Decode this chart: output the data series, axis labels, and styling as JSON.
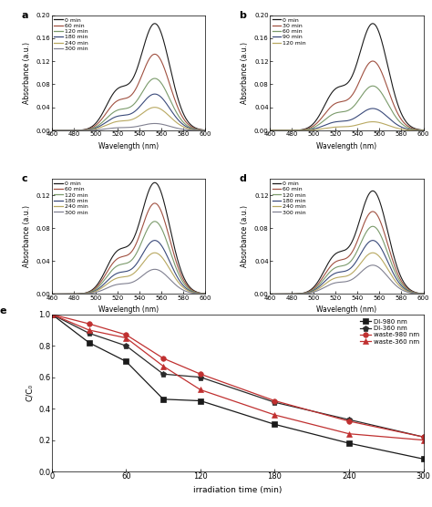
{
  "panel_a": {
    "label": "a",
    "times": [
      0,
      60,
      120,
      180,
      240,
      300
    ],
    "colors": [
      "#1a1a1a",
      "#a05040",
      "#7a9a6a",
      "#3a4a7a",
      "#b8a860",
      "#808090"
    ],
    "peak_abs": [
      0.185,
      0.132,
      0.09,
      0.063,
      0.04,
      0.012
    ],
    "ylim": [
      0.0,
      0.2
    ],
    "yticks": [
      0.0,
      0.04,
      0.08,
      0.12,
      0.16,
      0.2
    ],
    "ytick_labels": [
      "0.00",
      "0.04",
      "0.08",
      "0.12",
      "0.16",
      "0.20"
    ],
    "legend_times": [
      "0 min",
      "60 min",
      "120 min",
      "180 min",
      "240 min",
      "300 min"
    ]
  },
  "panel_b": {
    "label": "b",
    "times": [
      0,
      30,
      60,
      90,
      120
    ],
    "colors": [
      "#1a1a1a",
      "#a05040",
      "#7a9a6a",
      "#3a4a7a",
      "#b8a860"
    ],
    "peak_abs": [
      0.185,
      0.12,
      0.077,
      0.038,
      0.015
    ],
    "ylim": [
      0.0,
      0.2
    ],
    "yticks": [
      0.0,
      0.04,
      0.08,
      0.12,
      0.16,
      0.2
    ],
    "ytick_labels": [
      "0.00",
      "0.04",
      "0.08",
      "0.12",
      "0.16",
      "0.20"
    ],
    "legend_times": [
      "0 min",
      "30 min",
      "60 min",
      "90 min",
      "120 min"
    ]
  },
  "panel_c": {
    "label": "c",
    "times": [
      0,
      60,
      120,
      180,
      240,
      300
    ],
    "colors": [
      "#1a1a1a",
      "#a05040",
      "#7a9a6a",
      "#3a4a7a",
      "#b8a860",
      "#808090"
    ],
    "peak_abs": [
      0.135,
      0.11,
      0.088,
      0.065,
      0.05,
      0.03
    ],
    "ylim": [
      0.0,
      0.14
    ],
    "yticks": [
      0.0,
      0.04,
      0.08,
      0.12
    ],
    "ytick_labels": [
      "0.00",
      "0.04",
      "0.08",
      "0.12"
    ],
    "legend_times": [
      "0 min",
      "60 min",
      "120 min",
      "180 min",
      "240 min",
      "300 min"
    ]
  },
  "panel_d": {
    "label": "d",
    "times": [
      0,
      60,
      120,
      180,
      240,
      300
    ],
    "colors": [
      "#1a1a1a",
      "#a05040",
      "#7a9a6a",
      "#3a4a7a",
      "#b8a860",
      "#808090"
    ],
    "peak_abs": [
      0.125,
      0.1,
      0.082,
      0.065,
      0.05,
      0.035
    ],
    "ylim": [
      0.0,
      0.14
    ],
    "yticks": [
      0.0,
      0.04,
      0.08,
      0.12
    ],
    "ytick_labels": [
      "0.00",
      "0.04",
      "0.08",
      "0.12"
    ],
    "legend_times": [
      "0 min",
      "60 min",
      "120 min",
      "180 min",
      "240 min",
      "300 min"
    ]
  },
  "panel_e": {
    "label": "e",
    "xlabel": "irradiation time (min)",
    "ylabel": "C/C₀",
    "xlim": [
      0,
      300
    ],
    "ylim": [
      0,
      1.0
    ],
    "xticks": [
      0,
      60,
      120,
      180,
      240,
      300
    ],
    "yticks": [
      0.0,
      0.2,
      0.4,
      0.6,
      0.8,
      1.0
    ],
    "series": [
      {
        "label": "DI-980 nm",
        "color": "#1a1a1a",
        "marker": "s",
        "times": [
          0,
          30,
          60,
          90,
          120,
          180,
          240,
          300
        ],
        "values": [
          1.0,
          0.82,
          0.7,
          0.46,
          0.45,
          0.3,
          0.18,
          0.08
        ]
      },
      {
        "label": "DI-360 nm",
        "color": "#2a2a2a",
        "marker": "p",
        "times": [
          0,
          30,
          60,
          90,
          120,
          180,
          240,
          300
        ],
        "values": [
          1.0,
          0.88,
          0.8,
          0.62,
          0.6,
          0.44,
          0.33,
          0.22
        ]
      },
      {
        "label": "waste-980 nm",
        "color": "#c03030",
        "marker": "o",
        "times": [
          0,
          30,
          60,
          90,
          120,
          180,
          240,
          300
        ],
        "values": [
          1.0,
          0.94,
          0.87,
          0.72,
          0.62,
          0.45,
          0.32,
          0.22
        ]
      },
      {
        "label": "waste-360 nm",
        "color": "#c03030",
        "marker": "^",
        "times": [
          0,
          30,
          60,
          90,
          120,
          180,
          240,
          300
        ],
        "values": [
          1.0,
          0.9,
          0.85,
          0.67,
          0.52,
          0.36,
          0.24,
          0.2
        ]
      }
    ]
  },
  "wl_min": 460,
  "wl_max": 600,
  "wl_peak": 554,
  "wl_shoulder": 520,
  "shoulder_ratio": 0.35,
  "sigma_main": 13.5,
  "sigma_shoulder": 11.0
}
